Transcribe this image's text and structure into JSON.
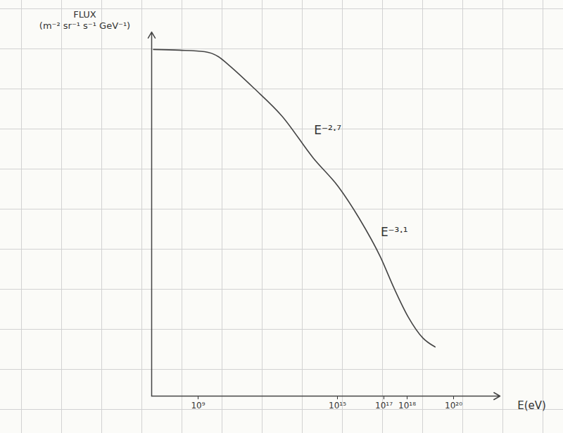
{
  "chart_data": {
    "type": "line",
    "ylabel": "FLUX\n(m⁻² sr⁻¹ s⁻¹ GeV⁻¹)",
    "xlabel": "E(eV)",
    "log": "x",
    "tick_labels": "x",
    "color": "#444444",
    "x": [
      12000000.0,
      160000000.0,
      1900000000.0,
      7600000000.0,
      21000000000.0,
      250000000000.0,
      4100000000000.0,
      93000000000000.0,
      1100000000000000.0,
      8700000000000000.0,
      7.1e+16,
      2.8e+17,
      1.1e+18,
      4.7e+18,
      1.6e+19
    ],
    "values": [
      95.2,
      95.0,
      94.6,
      93.2,
      90.9,
      84.6,
      76.9,
      65.3,
      57.5,
      48.8,
      38.2,
      29.5,
      21.8,
      16.0,
      13.5
    ],
    "xlim": [
      10000000.0,
      1e+22
    ],
    "xticks": [
      {
        "value": 1000000000.0,
        "label": "10⁹"
      },
      {
        "value": 1000000000000000.0,
        "label": "10¹⁵"
      },
      {
        "value": 1e+17,
        "label": "10¹⁷"
      },
      {
        "value": 1e+18,
        "label": "10¹⁸"
      },
      {
        "value": 1e+20,
        "label": "10²⁰"
      }
    ],
    "ylim": [
      0,
      100
    ],
    "yticks": [],
    "annotations": [
      {
        "text": "E⁻²·⁷",
        "x": 380000000000000.0,
        "y": 73
      },
      {
        "text": "E⁻³·¹",
        "x": 2.8e+17,
        "y": 45
      }
    ]
  }
}
